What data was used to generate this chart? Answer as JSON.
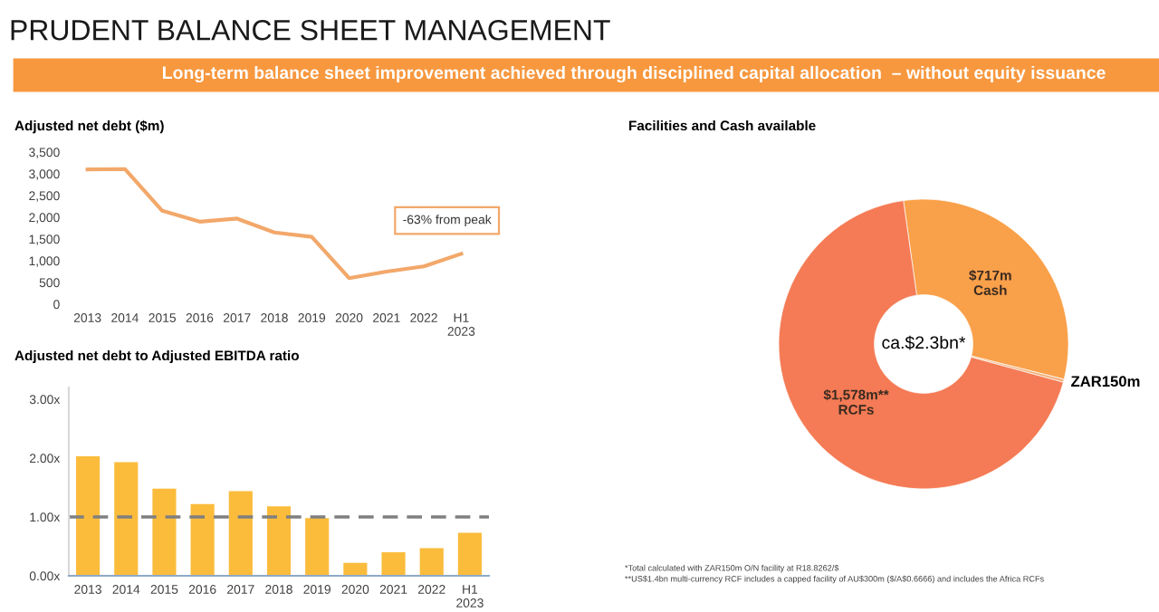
{
  "chart_data": [
    {
      "type": "other",
      "title": "PRUDENT BALANCE SHEET MANAGEMENT",
      "subtitle": "Long-term balance sheet improvement achieved through disciplined capital allocation  – without equity issuance"
    },
    {
      "type": "line",
      "title": "Adjusted net debt ($m)",
      "categories": [
        "2013",
        "2014",
        "2015",
        "2016",
        "2017",
        "2018",
        "2019",
        "2020",
        "2021",
        "2022",
        "H1\n2023"
      ],
      "series": [
        {
          "color": "#f2a86a",
          "values": [
            3100,
            3110,
            2150,
            1900,
            1970,
            1650,
            1550,
            600,
            750,
            870,
            1160
          ]
        }
      ],
      "ylim": [
        0,
        3500
      ],
      "yticks": [
        {
          "value": 0,
          "label": "0"
        },
        {
          "value": 500,
          "label": "500"
        },
        {
          "value": 1000,
          "label": "1,000"
        },
        {
          "value": 1500,
          "label": "1,500"
        },
        {
          "value": 2000,
          "label": "2,000"
        },
        {
          "value": 2500,
          "label": "2,500"
        },
        {
          "value": 3000,
          "label": "3,000"
        },
        {
          "value": 3500,
          "label": "3,500"
        }
      ],
      "annotations": [
        "-63% from peak"
      ],
      "grid": false,
      "legend": false
    },
    {
      "type": "bar",
      "title": "Adjusted net debt to Adjusted EBITDA ratio",
      "categories": [
        "2013",
        "2014",
        "2015",
        "2016",
        "2017",
        "2018",
        "2019",
        "2020",
        "2021",
        "2022",
        "H1\n2023"
      ],
      "series": [
        {
          "color": "#fbbc3c",
          "values": [
            2.03,
            1.93,
            1.48,
            1.22,
            1.44,
            1.18,
            0.98,
            0.22,
            0.4,
            0.47,
            0.73
          ]
        }
      ],
      "ylim": [
        0,
        3.2
      ],
      "yticks": [
        {
          "value": 0,
          "label": "0.00x"
        },
        {
          "value": 1,
          "label": "1.00x"
        },
        {
          "value": 2,
          "label": "2.00x"
        },
        {
          "value": 3,
          "label": "3.00x"
        }
      ],
      "ref_lines": [
        {
          "axis": "y",
          "value": 1,
          "label": null,
          "color": "#7f7f7f",
          "line_style": "dashed"
        }
      ],
      "grid": false,
      "legend": false
    },
    {
      "type": "donut",
      "title": "Facilities and Cash available",
      "categories": [
        "Cash",
        "ZAR150m",
        "RCFs"
      ],
      "values": [
        717,
        8,
        1578
      ],
      "value_labels": [
        "$717m",
        null,
        "$1,578m**"
      ],
      "colors": [
        "#f9a04a",
        "#f3b27e",
        "#f47b55"
      ],
      "annotations": [
        "ca.$2.3bn*",
        "*Total calculated with ZAR150m O/N facility at R18.8262/$",
        "**US$1.4bn multi-currency RCF includes a capped facility of AU$300m ($/A$0.6666) and includes the Africa RCFs"
      ]
    }
  ]
}
